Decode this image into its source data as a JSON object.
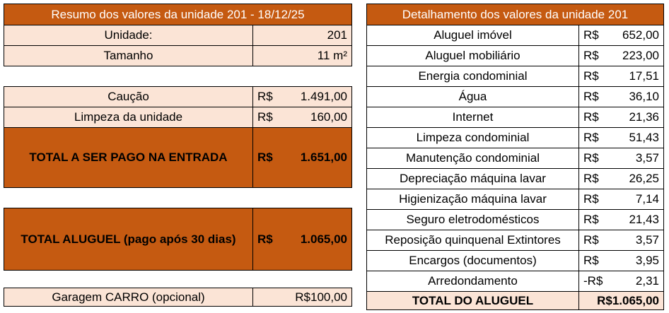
{
  "summary": {
    "header": "Resumo dos valores da unidade 201 - 18/12/25",
    "unidade_label": "Unidade:",
    "unidade_value": "201",
    "tamanho_label": "Tamanho",
    "tamanho_value": "11 m²",
    "caucao_label": "Caução",
    "caucao_currency": "R$",
    "caucao_value": "1.491,00",
    "limpeza_label": "Limpeza da unidade",
    "limpeza_currency": "R$",
    "limpeza_value": "160,00",
    "total_entrada_label": "TOTAL A SER PAGO NA ENTRADA",
    "total_entrada_currency": "R$",
    "total_entrada_value": "1.651,00",
    "total_aluguel_label": "TOTAL ALUGUEL (pago após 30 dias)",
    "total_aluguel_currency": "R$",
    "total_aluguel_value": "1.065,00",
    "garagem_label": "Garagem CARRO (opcional)",
    "garagem_value": "R$100,00"
  },
  "detail": {
    "header": "Detalhamento dos valores da unidade 201",
    "items": [
      {
        "label": "Aluguel imóvel",
        "currency": "R$",
        "value": "652,00"
      },
      {
        "label": "Aluguel mobiliário",
        "currency": "R$",
        "value": "223,00"
      },
      {
        "label": "Energia condominial",
        "currency": "R$",
        "value": "17,51"
      },
      {
        "label": "Água",
        "currency": "R$",
        "value": "36,10"
      },
      {
        "label": "Internet",
        "currency": "R$",
        "value": "21,36"
      },
      {
        "label": "Limpeza condominial",
        "currency": "R$",
        "value": "51,43"
      },
      {
        "label": "Manutenção condominial",
        "currency": "R$",
        "value": "3,57"
      },
      {
        "label": "Depreciação máquina lavar",
        "currency": "R$",
        "value": "26,25"
      },
      {
        "label": "Higienização máquina lavar",
        "currency": "R$",
        "value": "7,14"
      },
      {
        "label": "Seguro eletrodomésticos",
        "currency": "R$",
        "value": "21,43"
      },
      {
        "label": "Reposição quinquenal Extintores",
        "currency": "R$",
        "value": "3,57"
      },
      {
        "label": "Encargos (documentos)",
        "currency": "R$",
        "value": "3,95"
      },
      {
        "label": "Arredondamento",
        "currency": "-R$",
        "value": "2,31"
      }
    ],
    "total_label": "TOTAL DO ALUGUEL",
    "total_value": "R$1.065,00"
  }
}
